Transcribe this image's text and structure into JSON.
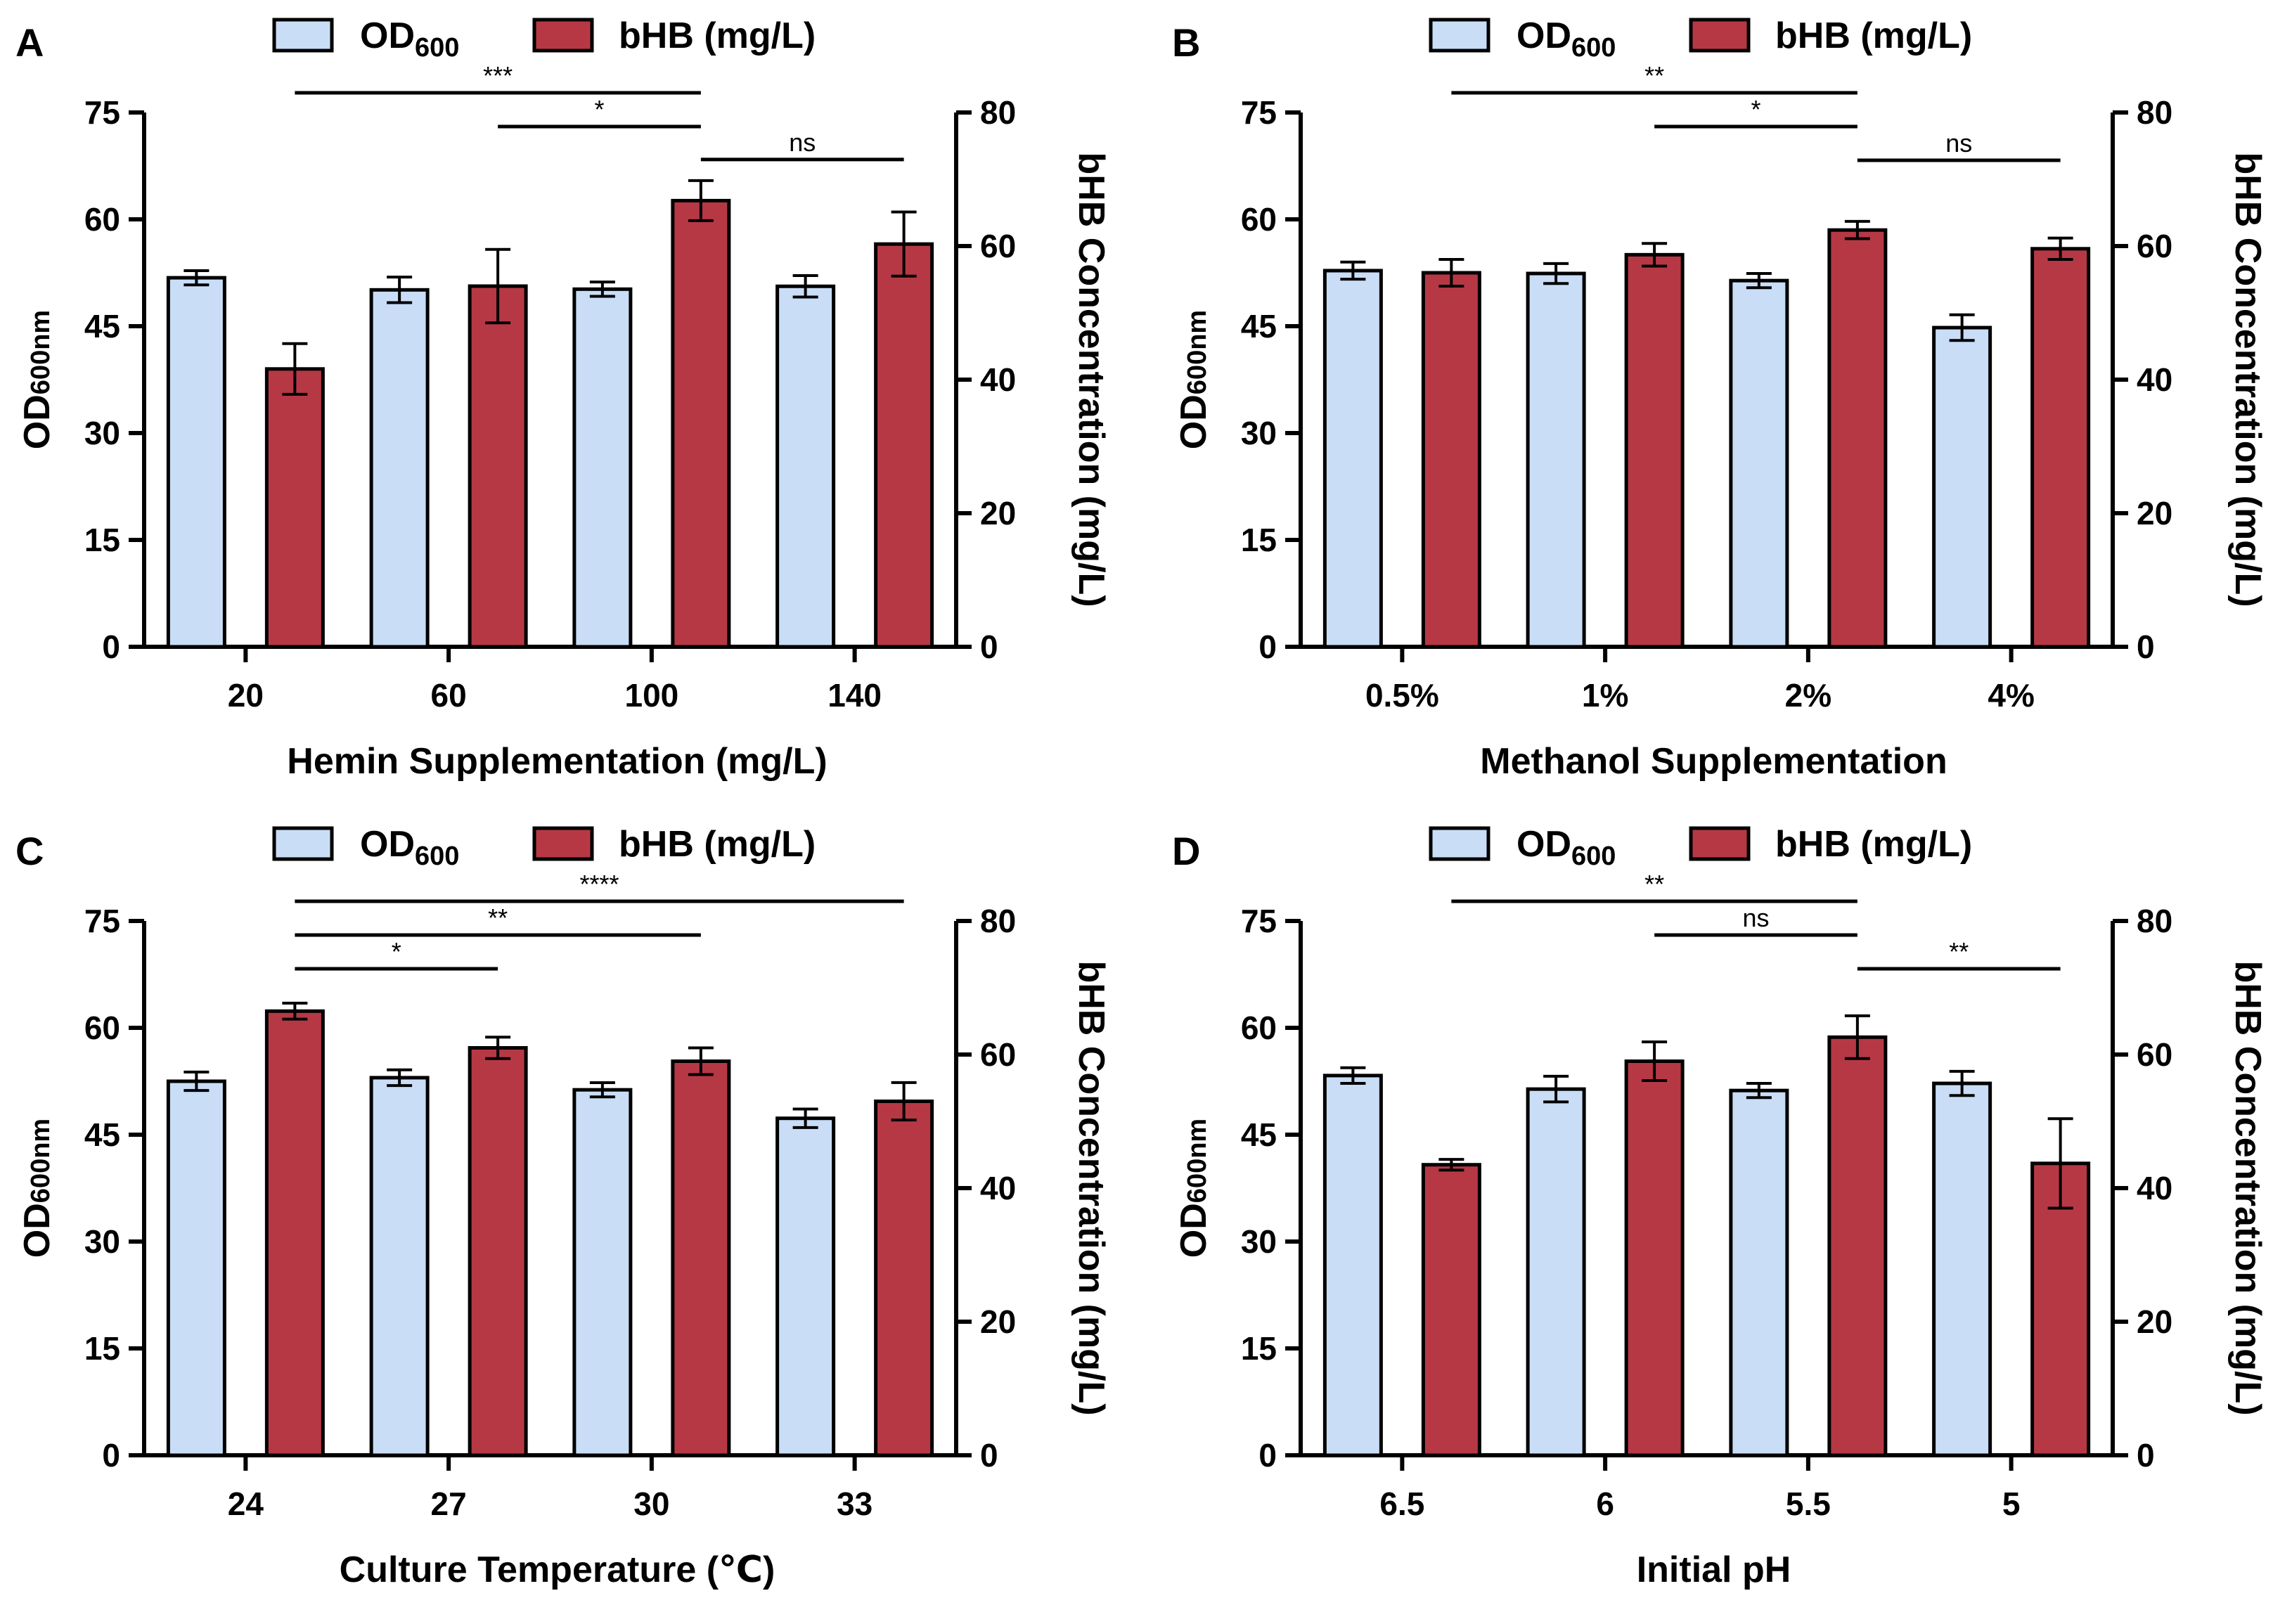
{
  "legend": {
    "od_label": "OD",
    "od_subscript": "600",
    "bhb_label": "bHB (mg/L)"
  },
  "colors": {
    "od_fill": "#c9ddf6",
    "bhb_fill": "#b73845",
    "axis": "#000000"
  },
  "chart_data": [
    {
      "panel": "A",
      "type": "bar",
      "xlabel": "Hemin Supplementation (mg/L)",
      "ylabel_left": "OD",
      "ylabel_left_sub": "600nm",
      "ylabel_right": "bHB Concentration (mg/L)",
      "categories": [
        "20",
        "60",
        "100",
        "140"
      ],
      "yleft_lim": [
        0,
        75
      ],
      "yleft_ticks": [
        0,
        15,
        30,
        45,
        60,
        75
      ],
      "yright_lim": [
        0,
        80
      ],
      "yright_ticks": [
        0,
        20,
        40,
        60,
        80
      ],
      "series": [
        {
          "name": "OD600",
          "axis": "left",
          "values": [
            51.8,
            50.1,
            50.2,
            50.6
          ],
          "errors": [
            1.0,
            1.8,
            1.0,
            1.5
          ]
        },
        {
          "name": "bHB (mg/L)",
          "axis": "right",
          "values": [
            41.6,
            54.0,
            66.8,
            60.3
          ],
          "errors": [
            3.8,
            5.5,
            3.0,
            4.8
          ]
        }
      ],
      "significance": [
        {
          "from": 0,
          "to": 2,
          "label": "***"
        },
        {
          "from": 1,
          "to": 2,
          "label": "*"
        },
        {
          "from": 2,
          "to": 3,
          "label": "ns"
        }
      ]
    },
    {
      "panel": "B",
      "type": "bar",
      "xlabel": "Methanol Supplementation",
      "ylabel_left": "OD",
      "ylabel_left_sub": "600nm",
      "ylabel_right": "bHB Concentration (mg/L)",
      "categories": [
        "0.5%",
        "1%",
        "2%",
        "4%"
      ],
      "yleft_lim": [
        0,
        75
      ],
      "yleft_ticks": [
        0,
        15,
        30,
        45,
        60,
        75
      ],
      "yright_lim": [
        0,
        80
      ],
      "yright_ticks": [
        0,
        20,
        40,
        60,
        80
      ],
      "series": [
        {
          "name": "OD600",
          "axis": "left",
          "values": [
            52.8,
            52.4,
            51.4,
            44.8
          ],
          "errors": [
            1.2,
            1.4,
            1.0,
            1.8
          ]
        },
        {
          "name": "bHB (mg/L)",
          "axis": "right",
          "values": [
            56.0,
            58.7,
            62.4,
            59.6
          ],
          "errors": [
            2.0,
            1.7,
            1.3,
            1.6
          ]
        }
      ],
      "significance": [
        {
          "from": 0,
          "to": 2,
          "label": "**"
        },
        {
          "from": 1,
          "to": 2,
          "label": "*"
        },
        {
          "from": 2,
          "to": 3,
          "label": "ns"
        }
      ]
    },
    {
      "panel": "C",
      "type": "bar",
      "xlabel": "Culture Temperature (℃)",
      "ylabel_left": "OD",
      "ylabel_left_sub": "600nm",
      "ylabel_right": "bHB Concentration (mg/L)",
      "categories": [
        "24",
        "27",
        "30",
        "33"
      ],
      "yleft_lim": [
        0,
        75
      ],
      "yleft_ticks": [
        0,
        15,
        30,
        45,
        60,
        75
      ],
      "yright_lim": [
        0,
        80
      ],
      "yright_ticks": [
        0,
        20,
        40,
        60,
        80
      ],
      "series": [
        {
          "name": "OD600",
          "axis": "left",
          "values": [
            52.5,
            53.0,
            51.3,
            47.3
          ],
          "errors": [
            1.3,
            1.1,
            1.0,
            1.3
          ]
        },
        {
          "name": "bHB (mg/L)",
          "axis": "right",
          "values": [
            66.5,
            61.0,
            59.0,
            53.0
          ],
          "errors": [
            1.2,
            1.6,
            2.0,
            2.8
          ]
        }
      ],
      "significance": [
        {
          "from": 0,
          "to": 1,
          "label": "*"
        },
        {
          "from": 0,
          "to": 2,
          "label": "**"
        },
        {
          "from": 0,
          "to": 3,
          "label": "****"
        }
      ]
    },
    {
      "panel": "D",
      "type": "bar",
      "xlabel": "Initial pH",
      "ylabel_left": "OD",
      "ylabel_left_sub": "600nm",
      "ylabel_right": "bHB Concentration (mg/L)",
      "categories": [
        "6.5",
        "6",
        "5.5",
        "5"
      ],
      "yleft_lim": [
        0,
        75
      ],
      "yleft_ticks": [
        0,
        15,
        30,
        45,
        60,
        75
      ],
      "yright_lim": [
        0,
        80
      ],
      "yright_ticks": [
        0,
        20,
        40,
        60,
        80
      ],
      "series": [
        {
          "name": "OD600",
          "axis": "left",
          "values": [
            53.3,
            51.4,
            51.2,
            52.2
          ],
          "errors": [
            1.1,
            1.8,
            1.0,
            1.7
          ]
        },
        {
          "name": "bHB (mg/L)",
          "axis": "right",
          "values": [
            43.5,
            59.0,
            62.6,
            43.7
          ],
          "errors": [
            0.8,
            2.9,
            3.2,
            6.7
          ]
        }
      ],
      "significance": [
        {
          "from": 0,
          "to": 2,
          "label": "**"
        },
        {
          "from": 1,
          "to": 2,
          "label": "ns"
        },
        {
          "from": 2,
          "to": 3,
          "label": "**"
        }
      ]
    }
  ]
}
